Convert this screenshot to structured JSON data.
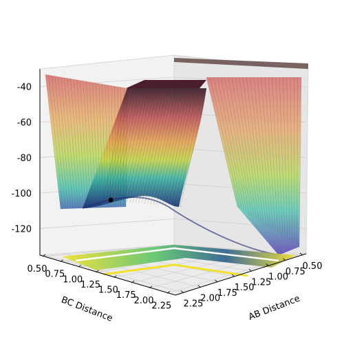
{
  "chart_data": {
    "type": "surface3d",
    "title": "",
    "xlabel": "AB Distance",
    "ylabel": "BC Distance",
    "zlabel": "",
    "x_ticks": [
      "0.50",
      "0.75",
      "1.00",
      "1.25",
      "1.50",
      "1.75",
      "2.00",
      "2.25"
    ],
    "y_ticks": [
      "0.50",
      "0.75",
      "1.00",
      "1.25",
      "1.50",
      "1.75",
      "2.00",
      "2.25"
    ],
    "z_ticks": [
      "-40",
      "-60",
      "-80",
      "-100",
      "-120"
    ],
    "xlim": [
      0.5,
      2.3
    ],
    "ylim": [
      0.5,
      2.3
    ],
    "zlim": [
      -135,
      -30
    ],
    "colormap": "viridis/plasma-like surface with contour projection on floor",
    "surface": "potential energy surface with a minimum valley at AB and BC near 0.75 and a plateau near -30 for large distances",
    "marker": {
      "x": 0.75,
      "y": 2.2,
      "z": -100
    },
    "grid": true
  }
}
